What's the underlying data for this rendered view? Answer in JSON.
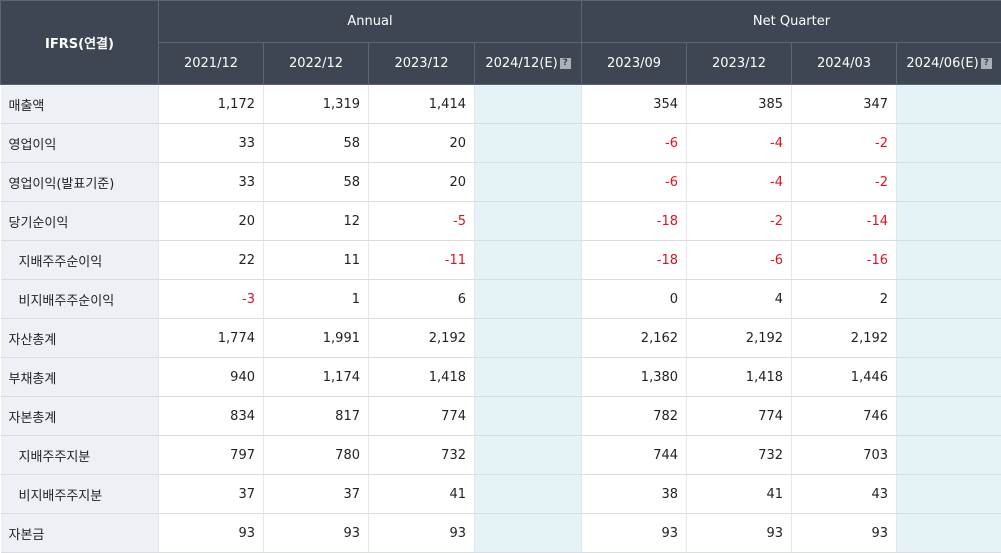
{
  "header": {
    "corner": "IFRS(연결)",
    "annual_label": "Annual",
    "quarter_label": "Net Quarter",
    "annual_periods": [
      "2021/12",
      "2022/12",
      "2023/12",
      "2024/12(E)"
    ],
    "quarter_periods": [
      "2023/09",
      "2023/12",
      "2024/03",
      "2024/06(E)"
    ],
    "help_icon": "?"
  },
  "rows": [
    {
      "label": "매출액",
      "annual": [
        "1,172",
        "1,319",
        "1,414",
        ""
      ],
      "quarter": [
        "354",
        "385",
        "347",
        ""
      ]
    },
    {
      "label": "영업이익",
      "annual": [
        "33",
        "58",
        "20",
        ""
      ],
      "quarter": [
        "-6",
        "-4",
        "-2",
        ""
      ]
    },
    {
      "label": "영업이익(발표기준)",
      "annual": [
        "33",
        "58",
        "20",
        ""
      ],
      "quarter": [
        "-6",
        "-4",
        "-2",
        ""
      ]
    },
    {
      "label": "당기순이익",
      "annual": [
        "20",
        "12",
        "-5",
        ""
      ],
      "quarter": [
        "-18",
        "-2",
        "-14",
        ""
      ]
    },
    {
      "label": "지배주주순이익",
      "annual": [
        "22",
        "11",
        "-11",
        ""
      ],
      "quarter": [
        "-18",
        "-6",
        "-16",
        ""
      ]
    },
    {
      "label": "비지배주주순이익",
      "annual": [
        "-3",
        "1",
        "6",
        ""
      ],
      "quarter": [
        "0",
        "4",
        "2",
        ""
      ]
    },
    {
      "label": "자산총계",
      "annual": [
        "1,774",
        "1,991",
        "2,192",
        ""
      ],
      "quarter": [
        "2,162",
        "2,192",
        "2,192",
        ""
      ]
    },
    {
      "label": "부채총계",
      "annual": [
        "940",
        "1,174",
        "1,418",
        ""
      ],
      "quarter": [
        "1,380",
        "1,418",
        "1,446",
        ""
      ]
    },
    {
      "label": "자본총계",
      "annual": [
        "834",
        "817",
        "774",
        ""
      ],
      "quarter": [
        "782",
        "774",
        "746",
        ""
      ]
    },
    {
      "label": "지배주주지분",
      "annual": [
        "797",
        "780",
        "732",
        ""
      ],
      "quarter": [
        "744",
        "732",
        "703",
        ""
      ]
    },
    {
      "label": "비지배주주지분",
      "annual": [
        "37",
        "37",
        "41",
        ""
      ],
      "quarter": [
        "38",
        "41",
        "43",
        ""
      ]
    },
    {
      "label": "자본금",
      "annual": [
        "93",
        "93",
        "93",
        ""
      ],
      "quarter": [
        "93",
        "93",
        "93",
        ""
      ]
    }
  ],
  "colors": {
    "header_bg": "#3d4652",
    "label_bg": "#edf1f5",
    "estimate_bg": "#e6f3f6",
    "negative": "#e0121f"
  }
}
